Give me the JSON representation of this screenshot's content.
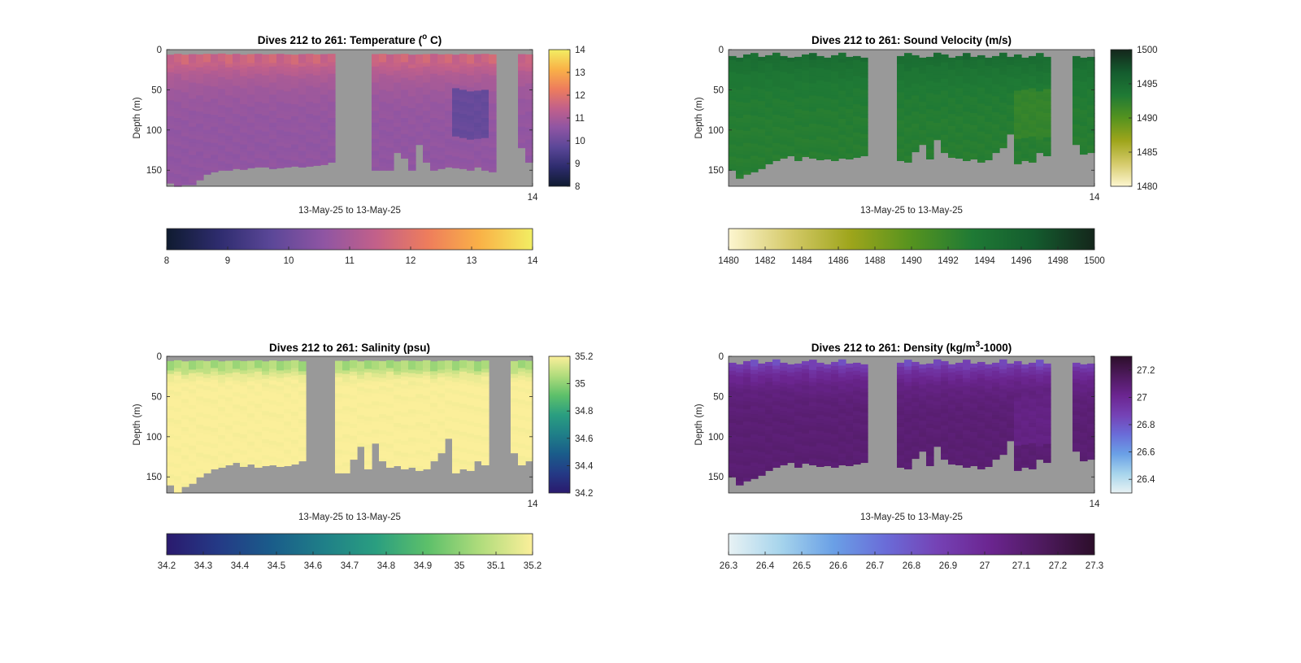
{
  "figure": {
    "background": "#ffffff",
    "missing_color": "#999999",
    "panels": [
      "temperature",
      "sound_velocity",
      "salinity",
      "density"
    ]
  },
  "chart_data": [
    {
      "id": "temperature",
      "type": "heatmap",
      "title_parts": [
        "Dives 212 to 261: Temperature (",
        "o",
        " C)"
      ],
      "xlabel": "13-May-25 to 13-May-25",
      "ylabel": "Depth (m)",
      "x_tick_labels": [
        "14"
      ],
      "y_ticks": [
        0,
        50,
        100,
        150
      ],
      "ylim": [
        0,
        170
      ],
      "y_reversed": true,
      "dives": 50,
      "gap_dives": [
        23,
        24,
        25,
        26,
        27,
        45,
        46,
        47
      ],
      "profile_depths": [
        166,
        170,
        168,
        168,
        162,
        155,
        152,
        150,
        150,
        148,
        149,
        147,
        146,
        146,
        148,
        147,
        146,
        145,
        146,
        145,
        144,
        143,
        140,
        0,
        0,
        0,
        0,
        0,
        150,
        150,
        150,
        128,
        135,
        150,
        118,
        140,
        150,
        148,
        146,
        147,
        148,
        150,
        146,
        150,
        152,
        0,
        0,
        0,
        122,
        140
      ],
      "surface_layer_m": [
        18,
        15,
        18,
        16,
        17,
        15,
        16,
        14,
        17,
        15,
        18,
        16,
        15,
        17,
        16,
        15,
        17,
        18,
        16,
        15,
        17,
        16,
        15,
        0,
        0,
        0,
        0,
        0,
        16,
        15,
        17,
        16,
        15,
        18,
        17,
        16,
        15,
        17,
        16,
        18,
        15,
        17,
        16,
        15,
        17,
        0,
        0,
        0,
        16,
        17
      ],
      "colorbar": {
        "range": [
          8,
          14
        ],
        "side_ticks": [
          8,
          9,
          10,
          11,
          12,
          13,
          14
        ],
        "bottom_ticks": [
          8,
          9,
          10,
          11,
          12,
          13,
          14
        ],
        "colors": [
          "#0f1b30",
          "#2e2c6e",
          "#5b4798",
          "#8f55a3",
          "#c2608a",
          "#ee7d5c",
          "#f9b247",
          "#f2ee63"
        ]
      },
      "field": {
        "surface": 11.6,
        "deep": 10.6,
        "decay_m": 25,
        "low_patch": 9.9
      }
    },
    {
      "id": "sound_velocity",
      "type": "heatmap",
      "title_parts": [
        "Dives 212 to 261: Sound Velocity (m/s)"
      ],
      "xlabel": "13-May-25 to 13-May-25",
      "ylabel": "Depth (m)",
      "x_tick_labels": [
        "14"
      ],
      "y_ticks": [
        0,
        50,
        100,
        150
      ],
      "ylim": [
        0,
        170
      ],
      "y_reversed": true,
      "dives": 50,
      "gap_dives": [
        19,
        20,
        21,
        22,
        44,
        45,
        46
      ],
      "profile_depths": [
        150,
        160,
        155,
        152,
        148,
        142,
        138,
        135,
        132,
        138,
        133,
        135,
        137,
        136,
        138,
        135,
        136,
        134,
        132,
        0,
        0,
        0,
        0,
        138,
        140,
        127,
        118,
        136,
        112,
        128,
        134,
        135,
        138,
        136,
        140,
        137,
        128,
        122,
        105,
        142,
        138,
        140,
        128,
        132,
        0,
        0,
        0,
        118,
        130,
        128
      ],
      "surface_layer_m": [
        8,
        10,
        6,
        12,
        9,
        7,
        11,
        8,
        10,
        9,
        6,
        12,
        8,
        10,
        7,
        11,
        9,
        8,
        10,
        0,
        0,
        0,
        0,
        8,
        12,
        7,
        10,
        9,
        11,
        6,
        10,
        8,
        12,
        9,
        7,
        10,
        8,
        11,
        9,
        6,
        10,
        8,
        12,
        9,
        0,
        0,
        0,
        8,
        10,
        9
      ],
      "colorbar": {
        "range": [
          1480,
          1500
        ],
        "side_ticks": [
          1480,
          1485,
          1490,
          1495,
          1500
        ],
        "bottom_ticks": [
          1480,
          1482,
          1484,
          1486,
          1488,
          1490,
          1492,
          1494,
          1496,
          1498,
          1500
        ],
        "colors": [
          "#fdf6d0",
          "#d5ca6a",
          "#9ea51b",
          "#55931f",
          "#1f7a35",
          "#145c2e",
          "#14261b"
        ]
      },
      "field": {
        "surface": 1495,
        "deep": 1492.8,
        "decay_m": 30,
        "low_patch": 1492.0
      }
    },
    {
      "id": "salinity",
      "type": "heatmap",
      "title_parts": [
        "Dives 212 to 261: Salinity (psu)"
      ],
      "xlabel": "13-May-25 to 13-May-25",
      "ylabel": "Depth (m)",
      "x_tick_labels": [
        "14"
      ],
      "y_ticks": [
        0,
        50,
        100,
        150
      ],
      "ylim": [
        0,
        170
      ],
      "y_reversed": true,
      "dives": 50,
      "gap_dives": [
        19,
        20,
        21,
        22,
        44,
        45,
        46
      ],
      "profile_depths": [
        160,
        170,
        162,
        158,
        150,
        145,
        140,
        138,
        135,
        132,
        137,
        134,
        138,
        136,
        135,
        137,
        136,
        134,
        130,
        0,
        0,
        0,
        0,
        145,
        145,
        128,
        112,
        140,
        108,
        130,
        138,
        136,
        140,
        138,
        142,
        140,
        130,
        120,
        102,
        145,
        140,
        142,
        130,
        135,
        0,
        0,
        0,
        120,
        135,
        130
      ],
      "surface_layer_m": [
        17,
        14,
        18,
        16,
        15,
        17,
        14,
        18,
        16,
        15,
        17,
        16,
        14,
        18,
        15,
        17,
        16,
        14,
        18,
        0,
        0,
        0,
        0,
        16,
        17,
        14,
        18,
        15,
        16,
        17,
        14,
        18,
        15,
        16,
        17,
        14,
        18,
        16,
        15,
        17,
        14,
        16,
        18,
        15,
        0,
        0,
        0,
        17,
        14,
        16
      ],
      "colorbar": {
        "range": [
          34.2,
          35.2
        ],
        "side_ticks": [
          34.2,
          34.4,
          34.6,
          34.8,
          35,
          35.2
        ],
        "bottom_ticks": [
          34.2,
          34.3,
          34.4,
          34.5,
          34.6,
          34.7,
          34.8,
          34.9,
          35,
          35.1,
          35.2
        ],
        "colors": [
          "#2a1a6e",
          "#243a86",
          "#1a5c8a",
          "#1f7f88",
          "#2a9e80",
          "#5dc06a",
          "#b0dc7c",
          "#fbef9a"
        ]
      },
      "field": {
        "surface": 35.05,
        "deep": 35.2,
        "decay_m": 6,
        "low_patch": 35.2
      }
    },
    {
      "id": "density",
      "type": "heatmap",
      "title_parts": [
        "Dives 212 to 261: Density (kg/m",
        "3",
        "-1000)"
      ],
      "xlabel": "13-May-25 to 13-May-25",
      "ylabel": "Depth (m)",
      "x_tick_labels": [
        "14"
      ],
      "y_ticks": [
        0,
        50,
        100,
        150
      ],
      "ylim": [
        0,
        170
      ],
      "y_reversed": true,
      "dives": 50,
      "gap_dives": [
        19,
        20,
        21,
        22,
        44,
        45,
        46
      ],
      "profile_depths": [
        150,
        160,
        155,
        152,
        148,
        142,
        138,
        135,
        132,
        138,
        133,
        135,
        137,
        136,
        138,
        135,
        136,
        134,
        132,
        0,
        0,
        0,
        0,
        138,
        140,
        127,
        118,
        136,
        112,
        128,
        134,
        135,
        138,
        136,
        140,
        137,
        128,
        122,
        105,
        142,
        138,
        140,
        128,
        132,
        0,
        0,
        0,
        118,
        130,
        128
      ],
      "surface_layer_m": [
        8,
        10,
        6,
        12,
        9,
        7,
        11,
        8,
        10,
        9,
        6,
        12,
        8,
        10,
        7,
        11,
        9,
        8,
        10,
        0,
        0,
        0,
        0,
        8,
        12,
        7,
        10,
        9,
        11,
        6,
        10,
        8,
        12,
        9,
        7,
        10,
        8,
        11,
        9,
        6,
        10,
        8,
        12,
        9,
        0,
        0,
        0,
        8,
        10,
        9
      ],
      "colorbar": {
        "range": [
          26.3,
          27.3
        ],
        "side_ticks": [
          26.4,
          26.6,
          26.8,
          27,
          27.2
        ],
        "bottom_ticks": [
          26.3,
          26.4,
          26.5,
          26.6,
          26.7,
          26.8,
          26.9,
          27,
          27.1,
          27.2,
          27.3
        ],
        "colors": [
          "#e8f2f4",
          "#a6d4ec",
          "#6aa0e6",
          "#6a6cd8",
          "#7542b5",
          "#6b2590",
          "#4e1a5e",
          "#2c0e2a"
        ]
      },
      "field": {
        "surface": 26.85,
        "deep": 27.1,
        "decay_m": 18,
        "low_patch": 27.05
      }
    }
  ]
}
